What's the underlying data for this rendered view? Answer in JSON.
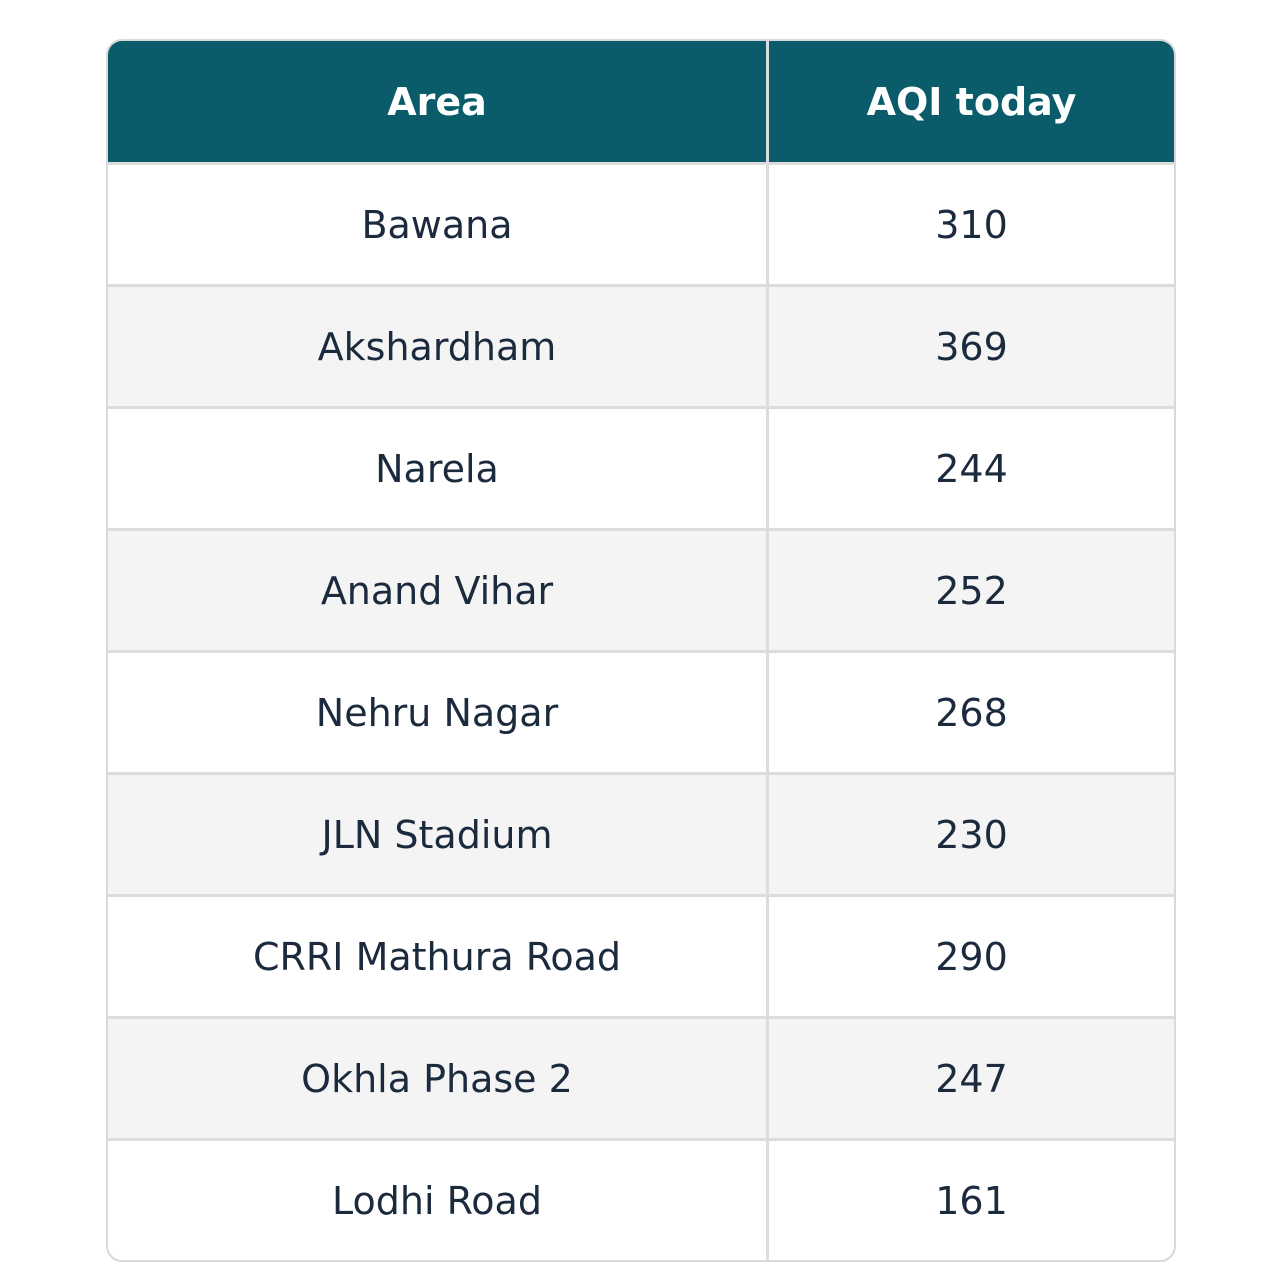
{
  "table": {
    "header": [
      "Area",
      "AQI today"
    ],
    "rows": [
      [
        "Bawana",
        "310"
      ],
      [
        "Akshardham",
        "369"
      ],
      [
        "Narela",
        "244"
      ],
      [
        "Anand Vihar",
        "252"
      ],
      [
        "Nehru Nagar",
        "268"
      ],
      [
        "JLN Stadium",
        "230"
      ],
      [
        "CRRI Mathura Road",
        "290"
      ],
      [
        "Okhla Phase 2",
        "247"
      ],
      [
        "Lodhi Road",
        "161"
      ]
    ]
  }
}
